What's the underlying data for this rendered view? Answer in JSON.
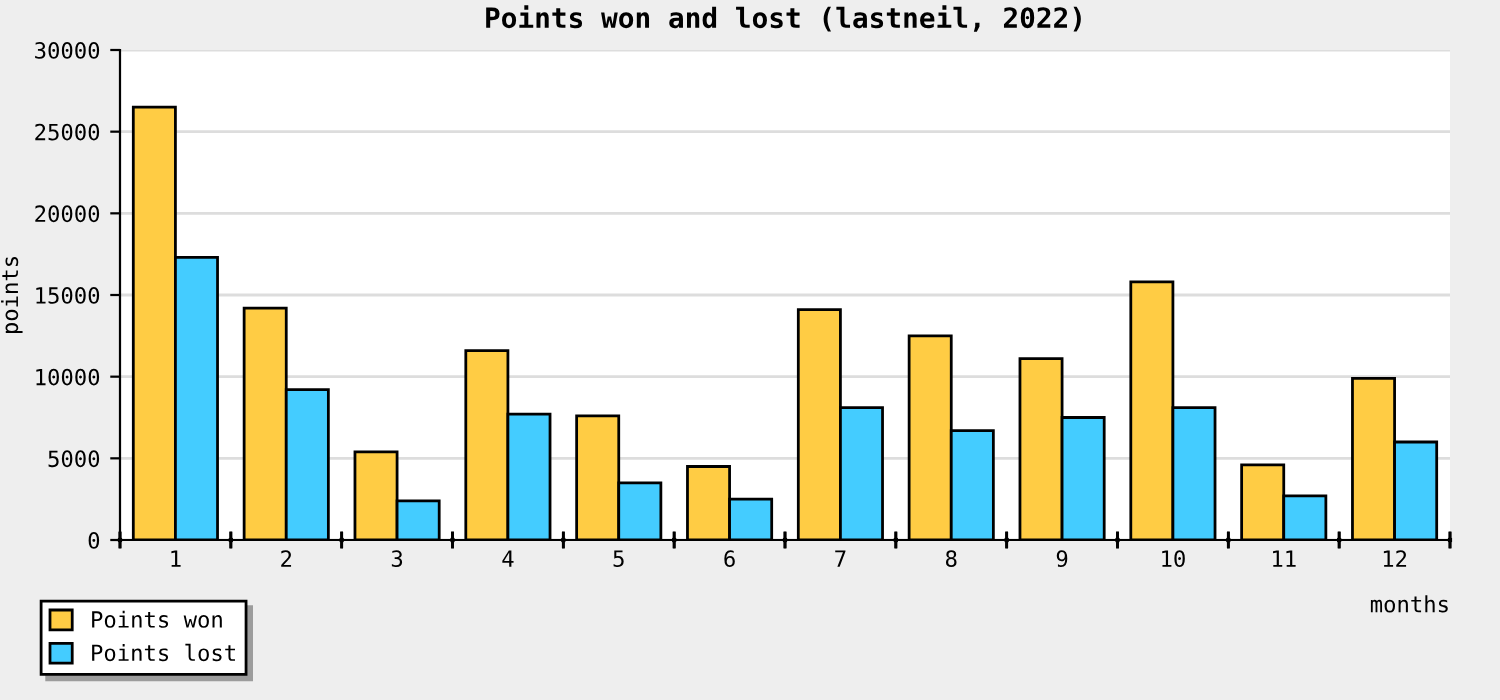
{
  "chart_data": {
    "type": "bar",
    "title": "Points won and lost (lastneil, 2022)",
    "xlabel": "months",
    "ylabel": "points",
    "categories": [
      "1",
      "2",
      "3",
      "4",
      "5",
      "6",
      "7",
      "8",
      "9",
      "10",
      "11",
      "12"
    ],
    "series": [
      {
        "name": "Points won",
        "color": "#ffcc44",
        "values": [
          26500,
          14200,
          5400,
          11600,
          7600,
          4500,
          14100,
          12500,
          11100,
          15800,
          4600,
          9900
        ]
      },
      {
        "name": "Points lost",
        "color": "#44ccff",
        "values": [
          17300,
          9200,
          2400,
          7700,
          3500,
          2500,
          8100,
          6700,
          7500,
          8100,
          2700,
          6000
        ]
      }
    ],
    "ylim": [
      0,
      30000
    ],
    "yticks": [
      0,
      5000,
      10000,
      15000,
      20000,
      25000,
      30000
    ],
    "grid": "y",
    "legend": "bottom left"
  }
}
